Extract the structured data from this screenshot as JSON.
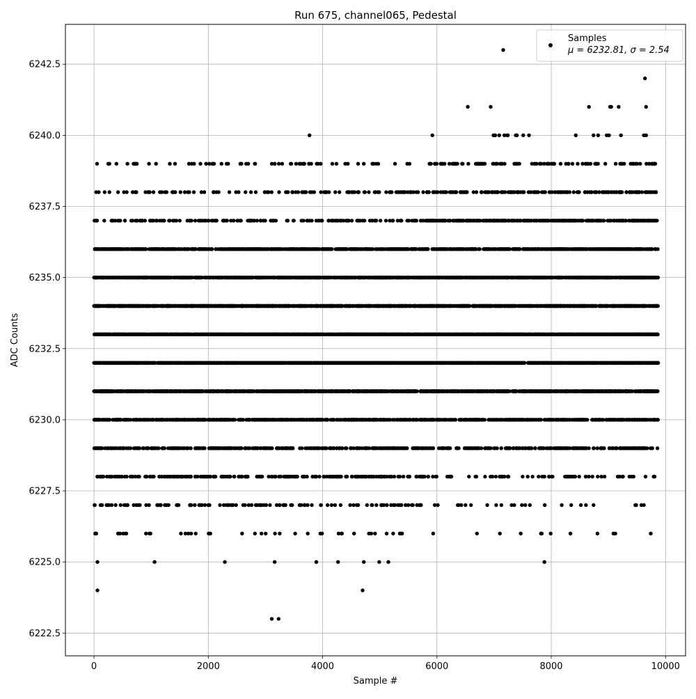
{
  "chart_data": {
    "type": "scatter",
    "title": "Run 675, channel065, Pedestal",
    "xlabel": "Sample #",
    "ylabel": "ADC Counts",
    "xlim": [
      -500,
      10350
    ],
    "ylim": [
      6221.7,
      6243.9
    ],
    "xticks": [
      0,
      2000,
      4000,
      6000,
      8000,
      10000
    ],
    "xtick_labels": [
      "0",
      "2000",
      "4000",
      "6000",
      "8000",
      "10000"
    ],
    "yticks": [
      6222.5,
      6225.0,
      6227.5,
      6230.0,
      6232.5,
      6235.0,
      6237.5,
      6240.0,
      6242.5
    ],
    "ytick_labels": [
      "6222.5",
      "6225.0",
      "6227.5",
      "6230.0",
      "6232.5",
      "6235.0",
      "6237.5",
      "6240.0",
      "6242.5"
    ],
    "grid": true,
    "legend": {
      "placement": "upper-right",
      "entries": [
        {
          "label": "Samples",
          "stats": "μ = 6232.81, σ = 2.54"
        }
      ]
    },
    "marker_color": "#000000",
    "sample_range": [
      0,
      9870
    ],
    "mean": 6232.81,
    "sigma": 2.54,
    "level_point_counts": [
      {
        "y": 6238,
        "count": 230
      },
      {
        "y": 6237,
        "count": 520
      },
      {
        "y": 6236,
        "count": 900
      },
      {
        "y": 6235,
        "count": 1300
      },
      {
        "y": 6234,
        "count": 1500
      },
      {
        "y": 6233,
        "count": 1650
      },
      {
        "y": 6232,
        "count": 1650
      },
      {
        "y": 6231,
        "count": 1500
      },
      {
        "y": 6230,
        "count": 1000
      },
      {
        "y": 6229,
        "count": 560
      },
      {
        "y": 6228,
        "count": 300
      },
      {
        "y": 6227,
        "count": 140
      },
      {
        "y": 6226,
        "count": 30
      },
      {
        "y": 6239,
        "count": 140
      }
    ],
    "sparse_points": [
      {
        "x": 0,
        "y": 6234
      },
      {
        "x": 20,
        "y": 6226
      },
      {
        "x": 40,
        "y": 6226
      },
      {
        "x": 60,
        "y": 6225
      },
      {
        "x": 60,
        "y": 6224
      },
      {
        "x": 250,
        "y": 6239
      },
      {
        "x": 270,
        "y": 6239
      },
      {
        "x": 270,
        "y": 6238
      },
      {
        "x": 420,
        "y": 6238
      },
      {
        "x": 420,
        "y": 6226
      },
      {
        "x": 550,
        "y": 6226
      },
      {
        "x": 710,
        "y": 6239
      },
      {
        "x": 730,
        "y": 6239
      },
      {
        "x": 750,
        "y": 6239
      },
      {
        "x": 720,
        "y": 6238
      },
      {
        "x": 740,
        "y": 6238
      },
      {
        "x": 900,
        "y": 6238
      },
      {
        "x": 1040,
        "y": 6238
      },
      {
        "x": 1060,
        "y": 6225
      },
      {
        "x": 1240,
        "y": 6238
      },
      {
        "x": 1370,
        "y": 6238
      },
      {
        "x": 1520,
        "y": 6226
      },
      {
        "x": 1600,
        "y": 6226
      },
      {
        "x": 1650,
        "y": 6226
      },
      {
        "x": 1700,
        "y": 6226
      },
      {
        "x": 1780,
        "y": 6226
      },
      {
        "x": 2080,
        "y": 6239
      },
      {
        "x": 2230,
        "y": 6239
      },
      {
        "x": 2320,
        "y": 6239
      },
      {
        "x": 2090,
        "y": 6238
      },
      {
        "x": 2140,
        "y": 6238
      },
      {
        "x": 2180,
        "y": 6238
      },
      {
        "x": 2290,
        "y": 6225
      },
      {
        "x": 2560,
        "y": 6239
      },
      {
        "x": 2580,
        "y": 6239
      },
      {
        "x": 2820,
        "y": 6239
      },
      {
        "x": 2530,
        "y": 6238
      },
      {
        "x": 2650,
        "y": 6238
      },
      {
        "x": 2830,
        "y": 6238
      },
      {
        "x": 2930,
        "y": 6226
      },
      {
        "x": 3110,
        "y": 6223
      },
      {
        "x": 3160,
        "y": 6225
      },
      {
        "x": 3230,
        "y": 6223
      },
      {
        "x": 3250,
        "y": 6226
      },
      {
        "x": 3470,
        "y": 6238
      },
      {
        "x": 3520,
        "y": 6226
      },
      {
        "x": 3620,
        "y": 6239
      },
      {
        "x": 3660,
        "y": 6239
      },
      {
        "x": 3640,
        "y": 6238
      },
      {
        "x": 3740,
        "y": 6226
      },
      {
        "x": 3770,
        "y": 6240
      },
      {
        "x": 3800,
        "y": 6239
      },
      {
        "x": 3780,
        "y": 6238
      },
      {
        "x": 3810,
        "y": 6238
      },
      {
        "x": 3890,
        "y": 6225
      },
      {
        "x": 3960,
        "y": 6226
      },
      {
        "x": 3990,
        "y": 6226
      },
      {
        "x": 3970,
        "y": 6238
      },
      {
        "x": 4040,
        "y": 6238
      },
      {
        "x": 4070,
        "y": 6238
      },
      {
        "x": 4270,
        "y": 6225
      },
      {
        "x": 4330,
        "y": 6226
      },
      {
        "x": 4440,
        "y": 6239
      },
      {
        "x": 4530,
        "y": 6238
      },
      {
        "x": 4560,
        "y": 6238
      },
      {
        "x": 4620,
        "y": 6238
      },
      {
        "x": 4550,
        "y": 6226
      },
      {
        "x": 4700,
        "y": 6224
      },
      {
        "x": 4720,
        "y": 6225
      },
      {
        "x": 4720,
        "y": 6239
      },
      {
        "x": 4740,
        "y": 6238
      },
      {
        "x": 4810,
        "y": 6226
      },
      {
        "x": 4850,
        "y": 6226
      },
      {
        "x": 4870,
        "y": 6239
      },
      {
        "x": 4990,
        "y": 6225
      },
      {
        "x": 4990,
        "y": 6238
      },
      {
        "x": 5120,
        "y": 6226
      },
      {
        "x": 5150,
        "y": 6225
      },
      {
        "x": 5180,
        "y": 6238
      },
      {
        "x": 5350,
        "y": 6226
      },
      {
        "x": 5390,
        "y": 6226
      },
      {
        "x": 5430,
        "y": 6238
      },
      {
        "x": 5550,
        "y": 6238
      },
      {
        "x": 5640,
        "y": 6238
      },
      {
        "x": 5670,
        "y": 6238
      },
      {
        "x": 5760,
        "y": 6238
      },
      {
        "x": 5860,
        "y": 6238
      },
      {
        "x": 5920,
        "y": 6240
      },
      {
        "x": 5970,
        "y": 6239
      },
      {
        "x": 6090,
        "y": 6239
      },
      {
        "x": 6270,
        "y": 6239
      },
      {
        "x": 6290,
        "y": 6239
      },
      {
        "x": 6540,
        "y": 6241
      },
      {
        "x": 6550,
        "y": 6239
      },
      {
        "x": 6680,
        "y": 6239
      },
      {
        "x": 6740,
        "y": 6239
      },
      {
        "x": 6940,
        "y": 6241
      },
      {
        "x": 6990,
        "y": 6240
      },
      {
        "x": 7020,
        "y": 6240
      },
      {
        "x": 7090,
        "y": 6240
      },
      {
        "x": 7160,
        "y": 6243
      },
      {
        "x": 7180,
        "y": 6240
      },
      {
        "x": 7230,
        "y": 6240
      },
      {
        "x": 7240,
        "y": 6240
      },
      {
        "x": 7380,
        "y": 6240
      },
      {
        "x": 7400,
        "y": 6240
      },
      {
        "x": 7510,
        "y": 6240
      },
      {
        "x": 7610,
        "y": 6240
      },
      {
        "x": 7820,
        "y": 6226
      },
      {
        "x": 7880,
        "y": 6225
      },
      {
        "x": 8430,
        "y": 6240
      },
      {
        "x": 8660,
        "y": 6241
      },
      {
        "x": 8740,
        "y": 6240
      },
      {
        "x": 8820,
        "y": 6240
      },
      {
        "x": 8970,
        "y": 6240
      },
      {
        "x": 9010,
        "y": 6240
      },
      {
        "x": 9030,
        "y": 6241
      },
      {
        "x": 9050,
        "y": 6241
      },
      {
        "x": 9180,
        "y": 6241
      },
      {
        "x": 9220,
        "y": 6240
      },
      {
        "x": 9620,
        "y": 6240
      },
      {
        "x": 9640,
        "y": 6242
      },
      {
        "x": 9660,
        "y": 6240
      },
      {
        "x": 9660,
        "y": 6241
      }
    ]
  }
}
